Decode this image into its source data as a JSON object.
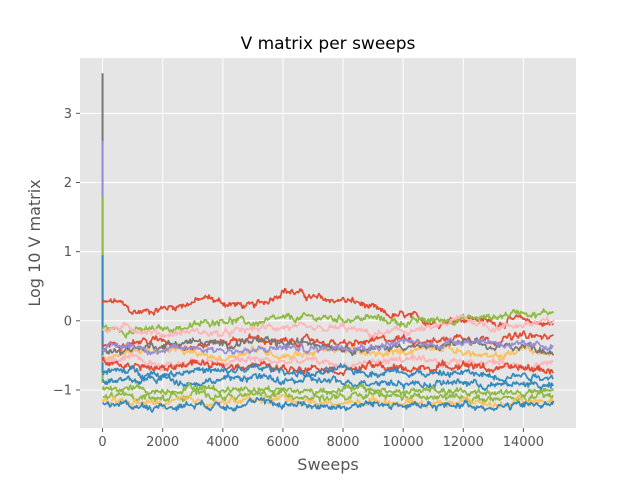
{
  "chart_data": {
    "type": "line",
    "title": "V matrix per sweeps",
    "xlabel": "Sweeps",
    "ylabel": "Log 10 V matrix",
    "xlim": [
      -750,
      15750
    ],
    "ylim": [
      -1.55,
      3.8
    ],
    "x_ticks": [
      0,
      2000,
      4000,
      6000,
      8000,
      10000,
      12000,
      14000
    ],
    "x_tick_labels": [
      "0",
      "2000",
      "4000",
      "6000",
      "8000",
      "10000",
      "12000",
      "14000"
    ],
    "y_ticks": [
      -1,
      0,
      1,
      2,
      3
    ],
    "y_tick_labels": [
      "−1",
      "0",
      "1",
      "2",
      "3"
    ],
    "grid": true,
    "legend": "none",
    "style": "ggplot",
    "x_range": [
      0,
      15000
    ],
    "spike_series": [
      {
        "color": "#777777",
        "peak": 3.58,
        "level": -0.45
      },
      {
        "color": "#988ED5",
        "peak": 2.6,
        "level": -0.35
      },
      {
        "color": "#8EBA42",
        "peak": 1.8,
        "level": -0.9
      },
      {
        "color": "#348ABD",
        "peak": 0.95,
        "level": -0.75
      }
    ],
    "series": [
      {
        "color": "#E24A33",
        "values": [
          [
            0,
            0.25
          ],
          [
            500,
            0.28
          ],
          [
            1000,
            0.12
          ],
          [
            1500,
            0.14
          ],
          [
            2000,
            0.18
          ],
          [
            2500,
            0.22
          ],
          [
            3000,
            0.27
          ],
          [
            3500,
            0.33
          ],
          [
            4000,
            0.26
          ],
          [
            4500,
            0.23
          ],
          [
            5000,
            0.2
          ],
          [
            5500,
            0.3
          ],
          [
            6000,
            0.45
          ],
          [
            6500,
            0.4
          ],
          [
            7000,
            0.33
          ],
          [
            7500,
            0.3
          ],
          [
            8000,
            0.3
          ],
          [
            8500,
            0.26
          ],
          [
            9000,
            0.17
          ],
          [
            9500,
            0.07
          ],
          [
            10000,
            0.07
          ],
          [
            10500,
            0.03
          ],
          [
            11000,
            -0.02
          ],
          [
            11500,
            0.0
          ],
          [
            12000,
            0.04
          ],
          [
            12500,
            0.02
          ],
          [
            13000,
            -0.03
          ],
          [
            13500,
            0.0
          ],
          [
            14000,
            0.02
          ],
          [
            14500,
            -0.03
          ],
          [
            15000,
            -0.05
          ]
        ]
      },
      {
        "color": "#8EBA42",
        "values": [
          [
            0,
            -0.1
          ],
          [
            1000,
            -0.15
          ],
          [
            2000,
            -0.12
          ],
          [
            3000,
            -0.08
          ],
          [
            4000,
            0.03
          ],
          [
            5000,
            -0.04
          ],
          [
            6000,
            0.02
          ],
          [
            7000,
            0.05
          ],
          [
            8000,
            0.03
          ],
          [
            9000,
            0.04
          ],
          [
            10000,
            -0.03
          ],
          [
            11000,
            0.01
          ],
          [
            12000,
            0.03
          ],
          [
            13000,
            0.05
          ],
          [
            14000,
            0.15
          ],
          [
            14500,
            0.08
          ],
          [
            15000,
            0.15
          ]
        ]
      },
      {
        "color": "#FFB5B8",
        "values": [
          [
            0,
            -0.12
          ],
          [
            1000,
            -0.1
          ],
          [
            2000,
            -0.2
          ],
          [
            3000,
            -0.15
          ],
          [
            4000,
            -0.2
          ],
          [
            5000,
            -0.12
          ],
          [
            6000,
            -0.08
          ],
          [
            7000,
            -0.15
          ],
          [
            8000,
            -0.1
          ],
          [
            9000,
            -0.2
          ],
          [
            10000,
            -0.15
          ],
          [
            11000,
            -0.12
          ],
          [
            12000,
            0.05
          ],
          [
            13000,
            -0.1
          ],
          [
            14000,
            -0.05
          ],
          [
            15000,
            -0.02
          ]
        ]
      },
      {
        "color": "#E24A33",
        "values": [
          [
            0,
            -0.35
          ],
          [
            1000,
            -0.3
          ],
          [
            2000,
            -0.28
          ],
          [
            3000,
            -0.38
          ],
          [
            4000,
            -0.3
          ],
          [
            5000,
            -0.25
          ],
          [
            6000,
            -0.32
          ],
          [
            7000,
            -0.28
          ],
          [
            8000,
            -0.35
          ],
          [
            9000,
            -0.3
          ],
          [
            10000,
            -0.25
          ],
          [
            11000,
            -0.3
          ],
          [
            12000,
            -0.22
          ],
          [
            13000,
            -0.28
          ],
          [
            14000,
            -0.22
          ],
          [
            15000,
            -0.25
          ]
        ]
      },
      {
        "color": "#FBC15E",
        "values": [
          [
            0,
            -0.5
          ],
          [
            1000,
            -0.45
          ],
          [
            2000,
            -0.4
          ],
          [
            3000,
            -0.48
          ],
          [
            4000,
            -0.55
          ],
          [
            5000,
            -0.4
          ],
          [
            6000,
            -0.5
          ],
          [
            7000,
            -0.45
          ],
          [
            8000,
            -0.4
          ],
          [
            9000,
            -0.5
          ],
          [
            10000,
            -0.45
          ],
          [
            11000,
            -0.35
          ],
          [
            12000,
            -0.45
          ],
          [
            13000,
            -0.55
          ],
          [
            14000,
            -0.4
          ],
          [
            15000,
            -0.5
          ]
        ]
      },
      {
        "color": "#777777",
        "values": [
          [
            0,
            -0.45
          ],
          [
            1000,
            -0.4
          ],
          [
            2000,
            -0.35
          ],
          [
            3000,
            -0.3
          ],
          [
            4000,
            -0.35
          ],
          [
            5000,
            -0.28
          ],
          [
            6000,
            -0.35
          ],
          [
            7000,
            -0.3
          ],
          [
            8000,
            -0.38
          ],
          [
            9000,
            -0.42
          ],
          [
            10000,
            -0.35
          ],
          [
            11000,
            -0.4
          ],
          [
            12000,
            -0.3
          ],
          [
            13000,
            -0.4
          ],
          [
            14000,
            -0.35
          ],
          [
            15000,
            -0.45
          ]
        ]
      },
      {
        "color": "#988ED5",
        "values": [
          [
            0,
            -0.4
          ],
          [
            1000,
            -0.35
          ],
          [
            2000,
            -0.45
          ],
          [
            3000,
            -0.38
          ],
          [
            4000,
            -0.42
          ],
          [
            5000,
            -0.45
          ],
          [
            6000,
            -0.38
          ],
          [
            7000,
            -0.42
          ],
          [
            8000,
            -0.35
          ],
          [
            9000,
            -0.38
          ],
          [
            10000,
            -0.3
          ],
          [
            11000,
            -0.35
          ],
          [
            12000,
            -0.28
          ],
          [
            13000,
            -0.3
          ],
          [
            14000,
            -0.38
          ],
          [
            15000,
            -0.35
          ]
        ]
      },
      {
        "color": "#FFB5B8",
        "values": [
          [
            0,
            -0.6
          ],
          [
            1000,
            -0.55
          ],
          [
            2000,
            -0.65
          ],
          [
            3000,
            -0.58
          ],
          [
            4000,
            -0.62
          ],
          [
            5000,
            -0.55
          ],
          [
            6000,
            -0.6
          ],
          [
            7000,
            -0.58
          ],
          [
            8000,
            -0.65
          ],
          [
            9000,
            -0.6
          ],
          [
            10000,
            -0.55
          ],
          [
            11000,
            -0.62
          ],
          [
            12000,
            -0.58
          ],
          [
            13000,
            -0.6
          ],
          [
            14000,
            -0.65
          ],
          [
            15000,
            -0.6
          ]
        ]
      },
      {
        "color": "#E24A33",
        "values": [
          [
            0,
            -0.6
          ],
          [
            1000,
            -0.65
          ],
          [
            2000,
            -0.7
          ],
          [
            3000,
            -0.6
          ],
          [
            4000,
            -0.68
          ],
          [
            5000,
            -0.62
          ],
          [
            6000,
            -0.7
          ],
          [
            7000,
            -0.65
          ],
          [
            8000,
            -0.72
          ],
          [
            9000,
            -0.65
          ],
          [
            10000,
            -0.7
          ],
          [
            11000,
            -0.68
          ],
          [
            12000,
            -0.62
          ],
          [
            13000,
            -0.7
          ],
          [
            14000,
            -0.68
          ],
          [
            15000,
            -0.72
          ]
        ]
      },
      {
        "color": "#348ABD",
        "values": [
          [
            0,
            -0.75
          ],
          [
            1000,
            -0.72
          ],
          [
            2000,
            -0.78
          ],
          [
            3000,
            -0.7
          ],
          [
            4000,
            -0.75
          ],
          [
            5000,
            -0.68
          ],
          [
            6000,
            -0.72
          ],
          [
            7000,
            -0.78
          ],
          [
            8000,
            -0.7
          ],
          [
            9000,
            -0.75
          ],
          [
            10000,
            -0.72
          ],
          [
            11000,
            -0.78
          ],
          [
            12000,
            -0.75
          ],
          [
            13000,
            -0.8
          ],
          [
            14000,
            -0.78
          ],
          [
            15000,
            -0.82
          ]
        ]
      },
      {
        "color": "#348ABD",
        "values": [
          [
            0,
            -0.85
          ],
          [
            1000,
            -0.88
          ],
          [
            2000,
            -0.82
          ],
          [
            3000,
            -0.9
          ],
          [
            4000,
            -0.85
          ],
          [
            5000,
            -0.8
          ],
          [
            6000,
            -0.88
          ],
          [
            7000,
            -0.85
          ],
          [
            8000,
            -0.9
          ],
          [
            9000,
            -0.87
          ],
          [
            10000,
            -0.9
          ],
          [
            11000,
            -0.92
          ],
          [
            12000,
            -0.88
          ],
          [
            13000,
            -0.95
          ],
          [
            14000,
            -0.9
          ],
          [
            15000,
            -0.95
          ]
        ]
      },
      {
        "color": "#8EBA42",
        "values": [
          [
            0,
            -1.0
          ],
          [
            1000,
            -0.98
          ],
          [
            2000,
            -1.02
          ],
          [
            3000,
            -0.95
          ],
          [
            4000,
            -1.0
          ],
          [
            5000,
            -0.97
          ],
          [
            6000,
            -1.0
          ],
          [
            7000,
            -1.02
          ],
          [
            8000,
            -0.98
          ],
          [
            9000,
            -1.0
          ],
          [
            10000,
            -1.03
          ],
          [
            11000,
            -1.0
          ],
          [
            12000,
            -1.05
          ],
          [
            13000,
            -1.02
          ],
          [
            14000,
            -1.05
          ],
          [
            15000,
            -1.02
          ]
        ]
      },
      {
        "color": "#8EBA42",
        "values": [
          [
            0,
            -1.1
          ],
          [
            1000,
            -1.08
          ],
          [
            2000,
            -1.12
          ],
          [
            3000,
            -1.05
          ],
          [
            4000,
            -1.1
          ],
          [
            5000,
            -1.08
          ],
          [
            6000,
            -1.05
          ],
          [
            7000,
            -1.1
          ],
          [
            8000,
            -1.12
          ],
          [
            9000,
            -1.08
          ],
          [
            10000,
            -1.1
          ],
          [
            11000,
            -1.12
          ],
          [
            12000,
            -1.1
          ],
          [
            13000,
            -1.15
          ],
          [
            14000,
            -1.12
          ],
          [
            15000,
            -1.1
          ]
        ]
      },
      {
        "color": "#FBC15E",
        "values": [
          [
            0,
            -1.15
          ],
          [
            1000,
            -1.18
          ],
          [
            2000,
            -1.2
          ],
          [
            3000,
            -1.15
          ],
          [
            4000,
            -1.18
          ],
          [
            5000,
            -1.15
          ],
          [
            6000,
            -1.12
          ],
          [
            7000,
            -1.18
          ],
          [
            8000,
            -1.2
          ],
          [
            9000,
            -1.15
          ],
          [
            10000,
            -1.18
          ],
          [
            11000,
            -1.2
          ],
          [
            12000,
            -1.15
          ],
          [
            13000,
            -1.22
          ],
          [
            14000,
            -1.18
          ],
          [
            15000,
            -1.15
          ]
        ]
      },
      {
        "color": "#348ABD",
        "values": [
          [
            0,
            -1.2
          ],
          [
            1000,
            -1.22
          ],
          [
            2000,
            -1.25
          ],
          [
            3000,
            -1.2
          ],
          [
            4000,
            -1.22
          ],
          [
            5000,
            -1.18
          ],
          [
            6000,
            -1.2
          ],
          [
            7000,
            -1.22
          ],
          [
            8000,
            -1.25
          ],
          [
            9000,
            -1.2
          ],
          [
            10000,
            -1.22
          ],
          [
            11000,
            -1.25
          ],
          [
            12000,
            -1.2
          ],
          [
            13000,
            -1.25
          ],
          [
            14000,
            -1.22
          ],
          [
            15000,
            -1.2
          ]
        ]
      }
    ]
  }
}
